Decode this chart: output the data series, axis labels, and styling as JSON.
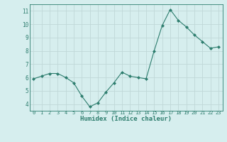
{
  "x": [
    0,
    1,
    2,
    3,
    4,
    5,
    6,
    7,
    8,
    9,
    10,
    11,
    12,
    13,
    14,
    15,
    16,
    17,
    18,
    19,
    20,
    21,
    22,
    23
  ],
  "y": [
    5.9,
    6.1,
    6.3,
    6.3,
    6.0,
    5.6,
    4.6,
    3.8,
    4.1,
    4.9,
    5.6,
    6.4,
    6.1,
    6.0,
    5.9,
    8.0,
    9.9,
    11.1,
    10.3,
    9.8,
    9.2,
    8.7,
    8.2,
    8.3
  ],
  "title": "",
  "xlabel": "Humidex (Indice chaleur)",
  "ylabel": "",
  "ylim": [
    3.5,
    11.5
  ],
  "xlim": [
    -0.5,
    23.5
  ],
  "line_color": "#2d7d6e",
  "marker_color": "#2d7d6e",
  "bg_color": "#d6eeee",
  "grid_color": "#c0d8d8",
  "tick_color": "#2d7d6e",
  "label_color": "#2d7d6e",
  "yticks": [
    4,
    5,
    6,
    7,
    8,
    9,
    10,
    11
  ],
  "xticks": [
    0,
    1,
    2,
    3,
    4,
    5,
    6,
    7,
    8,
    9,
    10,
    11,
    12,
    13,
    14,
    15,
    16,
    17,
    18,
    19,
    20,
    21,
    22,
    23
  ]
}
